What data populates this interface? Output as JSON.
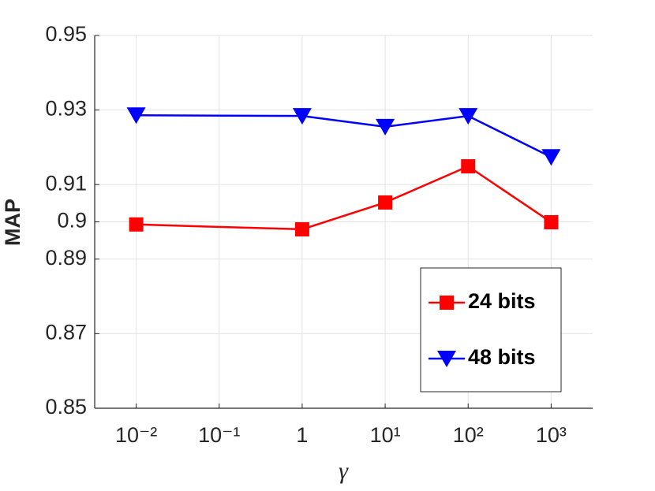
{
  "chart_data": {
    "type": "line",
    "x_label": "γ",
    "y_label": "MAP",
    "x": [
      0.01,
      1,
      10,
      100,
      1000
    ],
    "series": [
      {
        "name": "24 bits",
        "color": "#ff0000",
        "marker": "square",
        "values": [
          0.8993,
          0.898,
          0.9052,
          0.9149,
          0.8999
        ]
      },
      {
        "name": "48 bits",
        "color": "#0000ff",
        "marker": "triangle-down",
        "values": [
          0.9286,
          0.9284,
          0.9255,
          0.9284,
          0.9174
        ]
      }
    ],
    "xscale": "log",
    "xlim": [
      0.0031623,
      3162.28
    ],
    "xticks": [
      {
        "value": 0.01,
        "label": "10⁻²"
      },
      {
        "value": 0.1,
        "label": "10⁻¹"
      },
      1,
      {
        "value": 10,
        "label": "10¹"
      },
      {
        "value": 100,
        "label": "10²"
      },
      {
        "value": 1000,
        "label": "10³"
      }
    ],
    "ylim": [
      0.85,
      0.95
    ],
    "yticks": [
      0.85,
      0.87,
      0.89,
      0.9,
      0.91,
      0.93,
      0.95
    ],
    "grid": true,
    "legend": "lower right"
  }
}
